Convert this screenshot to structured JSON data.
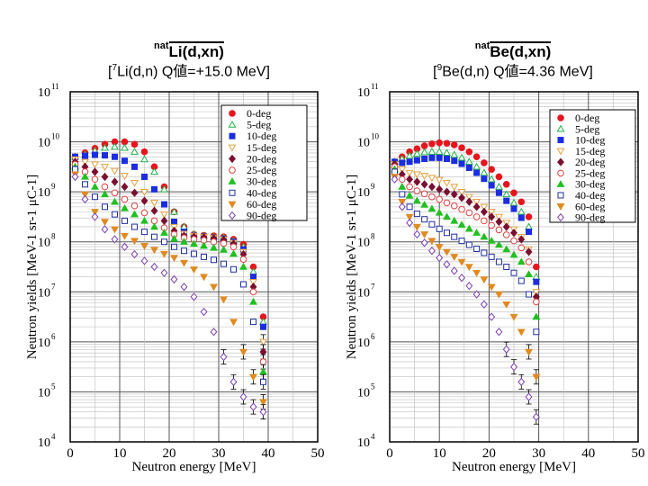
{
  "titles": [
    {
      "target": "natLi",
      "target_sup": "nat",
      "target_main": "Li(d,xn)",
      "reaction_sup": "7",
      "reaction_pre": "[",
      "reaction_main": "Li(d,n) Q値=+15.0 MeV]"
    },
    {
      "target": "natBe",
      "target_sup": "nat",
      "target_main": "Be(d,xn)",
      "reaction_sup": "9",
      "reaction_pre": "[",
      "reaction_main": "Be(d,n) Q値=4.36 MeV]"
    }
  ],
  "legend_labels": [
    "0-deg",
    "5-deg",
    "10-deg",
    "15-deg",
    "20-deg",
    "25-deg",
    "30-deg",
    "40-deg",
    "60-deg",
    "90-deg"
  ],
  "series_styles": [
    {
      "color": "#e8141c",
      "marker": "circle",
      "filled": true
    },
    {
      "color": "#22b14c",
      "marker": "triangle",
      "filled": false
    },
    {
      "color": "#1a2de0",
      "marker": "square",
      "filled": true
    },
    {
      "color": "#e8a040",
      "marker": "triangle-down",
      "filled": false
    },
    {
      "color": "#7a1030",
      "marker": "diamond",
      "filled": true
    },
    {
      "color": "#e04040",
      "marker": "circle",
      "filled": false
    },
    {
      "color": "#20c020",
      "marker": "triangle",
      "filled": true
    },
    {
      "color": "#2030a0",
      "marker": "square",
      "filled": false
    },
    {
      "color": "#e08a20",
      "marker": "triangle-down",
      "filled": true
    },
    {
      "color": "#7a40b0",
      "marker": "diamond",
      "filled": false
    }
  ],
  "chart_data": [
    {
      "type": "scatter",
      "title": "natLi(d,xn) [7Li(d,n) Q値=+15.0 MeV]",
      "xlabel": "Neutron energy [MeV]",
      "ylabel": "Neutron yields [MeV-1 sr-1 μC-1]",
      "xlim": [
        0,
        50
      ],
      "ylim_log10": [
        4,
        11
      ],
      "x_ticks": [
        "0",
        "10",
        "20",
        "30",
        "40",
        "50"
      ],
      "y_tick_exponents": [
        "4",
        "5",
        "6",
        "7",
        "8",
        "9",
        "10",
        "11"
      ],
      "series": [
        {
          "name": "0-deg",
          "x": [
            1,
            3,
            5,
            7,
            9,
            11,
            13,
            15,
            17,
            19,
            21,
            23,
            25,
            27,
            29,
            31,
            33,
            35,
            37,
            39
          ],
          "log_y": [
            9.7,
            9.78,
            9.87,
            9.95,
            10.0,
            10.0,
            9.95,
            9.8,
            9.5,
            9.1,
            8.6,
            8.3,
            8.15,
            8.13,
            8.12,
            8.1,
            8.05,
            7.95,
            7.5,
            6.5
          ]
        },
        {
          "name": "5-deg",
          "x": [
            1,
            3,
            5,
            7,
            9,
            11,
            13,
            15,
            17,
            19,
            21,
            23,
            25,
            27,
            29,
            31,
            33,
            35,
            37,
            39
          ],
          "log_y": [
            9.7,
            9.75,
            9.82,
            9.88,
            9.9,
            9.88,
            9.8,
            9.65,
            9.4,
            9.05,
            8.6,
            8.3,
            8.15,
            8.12,
            8.1,
            8.08,
            8.02,
            7.9,
            7.4,
            6.4
          ]
        },
        {
          "name": "10-deg",
          "x": [
            1,
            3,
            5,
            7,
            9,
            11,
            13,
            15,
            17,
            19,
            21,
            23,
            25,
            27,
            29,
            31,
            33,
            35,
            37,
            39
          ],
          "log_y": [
            9.7,
            9.72,
            9.74,
            9.73,
            9.7,
            9.62,
            9.5,
            9.3,
            9.05,
            8.75,
            8.4,
            8.2,
            8.12,
            8.1,
            8.08,
            8.06,
            8.0,
            7.85,
            7.3,
            6.3
          ]
        },
        {
          "name": "15-deg",
          "x": [
            1,
            3,
            5,
            7,
            9,
            11,
            13,
            15,
            17,
            19,
            21,
            23,
            25,
            27,
            29,
            31,
            33,
            35,
            37,
            39
          ],
          "log_y": [
            9.65,
            9.6,
            9.55,
            9.5,
            9.42,
            9.32,
            9.18,
            9.0,
            8.78,
            8.55,
            8.3,
            8.16,
            8.12,
            8.1,
            8.08,
            8.05,
            7.98,
            7.8,
            7.2,
            6.0
          ]
        },
        {
          "name": "20-deg",
          "x": [
            1,
            3,
            5,
            7,
            9,
            11,
            13,
            15,
            17,
            19,
            21,
            23,
            25,
            27,
            29,
            31,
            33,
            35,
            37,
            39
          ],
          "log_y": [
            9.6,
            9.5,
            9.4,
            9.3,
            9.2,
            9.1,
            8.98,
            8.82,
            8.62,
            8.42,
            8.22,
            8.12,
            8.1,
            8.09,
            8.07,
            8.04,
            7.96,
            7.75,
            7.1,
            5.8
          ]
        },
        {
          "name": "25-deg",
          "x": [
            1,
            3,
            5,
            7,
            9,
            11,
            13,
            15,
            17,
            19,
            21,
            23,
            25,
            27,
            29,
            31,
            33,
            35,
            37,
            39
          ],
          "log_y": [
            9.55,
            9.4,
            9.25,
            9.1,
            8.98,
            8.85,
            8.72,
            8.58,
            8.42,
            8.28,
            8.15,
            8.08,
            8.05,
            8.03,
            8.0,
            7.97,
            7.9,
            7.65,
            7.0,
            5.6
          ]
        },
        {
          "name": "30-deg",
          "x": [
            1,
            3,
            5,
            7,
            9,
            11,
            13,
            15,
            17,
            19,
            21,
            23,
            25,
            27,
            29,
            31,
            33,
            35,
            37,
            39
          ],
          "log_y": [
            9.5,
            9.3,
            9.1,
            8.95,
            8.8,
            8.67,
            8.55,
            8.42,
            8.3,
            8.18,
            8.06,
            8.0,
            7.96,
            7.92,
            7.88,
            7.84,
            7.76,
            7.5,
            6.8,
            5.4
          ]
        },
        {
          "name": "40-deg",
          "x": [
            1,
            3,
            5,
            7,
            9,
            11,
            13,
            15,
            17,
            19,
            21,
            23,
            25,
            27,
            29,
            31,
            33,
            35,
            37,
            39
          ],
          "log_y": [
            9.45,
            9.15,
            8.9,
            8.7,
            8.55,
            8.42,
            8.3,
            8.2,
            8.1,
            8.0,
            7.9,
            7.82,
            7.76,
            7.7,
            7.64,
            7.56,
            7.45,
            7.15,
            6.4,
            5.2
          ]
        },
        {
          "name": "60-deg",
          "x": [
            1,
            3,
            5,
            7,
            9,
            11,
            13,
            15,
            17,
            19,
            21,
            23,
            25,
            27,
            29,
            31,
            33,
            35,
            37,
            39
          ],
          "log_y": [
            9.35,
            8.95,
            8.6,
            8.4,
            8.25,
            8.12,
            8.02,
            7.92,
            7.84,
            7.76,
            7.68,
            7.58,
            7.45,
            7.3,
            7.1,
            6.85,
            6.4,
            5.8,
            5.3,
            4.8
          ]
        },
        {
          "name": "90-deg",
          "x": [
            1,
            3,
            5,
            7,
            9,
            11,
            13,
            15,
            17,
            19,
            21,
            23,
            25,
            27,
            29,
            31,
            33,
            35,
            37,
            39
          ],
          "log_y": [
            9.3,
            8.85,
            8.5,
            8.25,
            8.05,
            7.9,
            7.75,
            7.62,
            7.5,
            7.38,
            7.25,
            7.1,
            6.9,
            6.6,
            6.2,
            5.7,
            5.2,
            4.9,
            4.7,
            4.6
          ]
        }
      ]
    },
    {
      "type": "scatter",
      "title": "natBe(d,xn) [9Be(d,n) Q値=4.36 MeV]",
      "xlabel": "Neutron energy [MeV]",
      "ylabel": "Neutron yields [MeV-1 sr-1 μC-1]",
      "xlim": [
        0,
        50
      ],
      "ylim_log10": [
        4,
        11
      ],
      "x_ticks": [
        "0",
        "10",
        "20",
        "30",
        "40",
        "50"
      ],
      "y_tick_exponents": [
        "4",
        "5",
        "6",
        "7",
        "8",
        "9",
        "10",
        "11"
      ],
      "series": [
        {
          "name": "0-deg",
          "x": [
            1,
            2.5,
            4,
            5.5,
            7,
            8.5,
            10,
            11.5,
            13,
            14.5,
            16,
            17.5,
            19,
            20.5,
            22,
            23.5,
            25,
            26.5,
            28,
            29.5
          ],
          "log_y": [
            9.6,
            9.7,
            9.8,
            9.86,
            9.92,
            9.96,
            9.98,
            9.97,
            9.94,
            9.88,
            9.8,
            9.7,
            9.58,
            9.45,
            9.3,
            9.15,
            8.98,
            8.8,
            8.5,
            7.5
          ]
        },
        {
          "name": "5-deg",
          "x": [
            1,
            2.5,
            4,
            5.5,
            7,
            8.5,
            10,
            11.5,
            13,
            14.5,
            16,
            17.5,
            19,
            20.5,
            22,
            23.5,
            25,
            26.5,
            28,
            29.5
          ],
          "log_y": [
            9.6,
            9.66,
            9.72,
            9.76,
            9.79,
            9.8,
            9.8,
            9.78,
            9.74,
            9.68,
            9.6,
            9.5,
            9.38,
            9.25,
            9.1,
            8.95,
            8.78,
            8.6,
            8.3,
            7.3
          ]
        },
        {
          "name": "10-deg",
          "x": [
            1,
            2.5,
            4,
            5.5,
            7,
            8.5,
            10,
            11.5,
            13,
            14.5,
            16,
            17.5,
            19,
            20.5,
            22,
            23.5,
            25,
            26.5,
            28,
            29.5
          ],
          "log_y": [
            9.6,
            9.58,
            9.6,
            9.63,
            9.66,
            9.68,
            9.68,
            9.66,
            9.62,
            9.56,
            9.48,
            9.38,
            9.26,
            9.13,
            8.98,
            8.82,
            8.66,
            8.48,
            8.2,
            7.2
          ]
        },
        {
          "name": "15-deg",
          "x": [
            1,
            2.5,
            4,
            5.5,
            7,
            8.5,
            10,
            11.5,
            13,
            14.5,
            16,
            17.5,
            19,
            20.5,
            22,
            23.5,
            25,
            26.5,
            28,
            29.5
          ],
          "log_y": [
            9.55,
            9.45,
            9.38,
            9.35,
            9.32,
            9.28,
            9.24,
            9.18,
            9.1,
            9.0,
            8.9,
            8.8,
            8.7,
            8.6,
            8.5,
            8.38,
            8.25,
            8.1,
            7.85,
            7.0
          ]
        },
        {
          "name": "20-deg",
          "x": [
            1,
            2.5,
            4,
            5.5,
            7,
            8.5,
            10,
            11.5,
            13,
            14.5,
            16,
            17.5,
            19,
            20.5,
            22,
            23.5,
            25,
            26.5,
            28,
            29.5
          ],
          "log_y": [
            9.55,
            9.35,
            9.25,
            9.2,
            9.15,
            9.1,
            9.05,
            9.0,
            8.95,
            8.88,
            8.8,
            8.7,
            8.6,
            8.5,
            8.4,
            8.3,
            8.18,
            8.05,
            7.8,
            6.9
          ]
        },
        {
          "name": "25-deg",
          "x": [
            1,
            2.5,
            4,
            5.5,
            7,
            8.5,
            10,
            11.5,
            13,
            14.5,
            16,
            17.5,
            19,
            20.5,
            22,
            23.5,
            25,
            26.5,
            28,
            29.5
          ],
          "log_y": [
            9.5,
            9.25,
            9.1,
            9.02,
            8.96,
            8.9,
            8.85,
            8.78,
            8.72,
            8.65,
            8.58,
            8.5,
            8.42,
            8.33,
            8.24,
            8.14,
            8.02,
            7.88,
            7.6,
            6.8
          ]
        },
        {
          "name": "30-deg",
          "x": [
            1,
            2.5,
            4,
            5.5,
            7,
            8.5,
            10,
            11.5,
            13,
            14.5,
            16,
            17.5,
            19,
            20.5,
            22,
            23.5,
            25,
            26.5,
            28,
            29.5
          ],
          "log_y": [
            9.45,
            9.1,
            8.92,
            8.82,
            8.74,
            8.66,
            8.58,
            8.5,
            8.42,
            8.34,
            8.26,
            8.18,
            8.1,
            8.02,
            7.94,
            7.85,
            7.74,
            7.6,
            7.35,
            6.5
          ]
        },
        {
          "name": "40-deg",
          "x": [
            1,
            2.5,
            4,
            5.5,
            7,
            8.5,
            10,
            11.5,
            13,
            14.5,
            16,
            17.5,
            19,
            20.5,
            22,
            23.5,
            25,
            26.5,
            28,
            29.5
          ],
          "log_y": [
            9.4,
            8.95,
            8.7,
            8.56,
            8.45,
            8.35,
            8.26,
            8.18,
            8.1,
            8.02,
            7.94,
            7.86,
            7.78,
            7.7,
            7.6,
            7.5,
            7.38,
            7.22,
            6.95,
            6.2
          ]
        },
        {
          "name": "60-deg",
          "x": [
            1,
            2.5,
            4,
            5.5,
            7,
            8.5,
            10,
            11.5,
            13,
            14.5,
            16,
            17.5,
            19,
            20.5,
            22,
            23.5,
            25,
            26.5,
            28,
            29.5
          ],
          "log_y": [
            9.3,
            8.8,
            8.5,
            8.3,
            8.15,
            8.02,
            7.9,
            7.8,
            7.7,
            7.6,
            7.5,
            7.38,
            7.25,
            7.1,
            6.95,
            6.75,
            6.5,
            6.2,
            5.8,
            5.3
          ]
        },
        {
          "name": "90-deg",
          "x": [
            1,
            2.5,
            4,
            5.5,
            7,
            8.5,
            10,
            11.5,
            13,
            14.5,
            16,
            17.5,
            19,
            20.5,
            22,
            23.5,
            25,
            26.5,
            28,
            29.5
          ],
          "log_y": [
            9.25,
            8.7,
            8.38,
            8.15,
            7.98,
            7.82,
            7.68,
            7.55,
            7.42,
            7.28,
            7.12,
            6.95,
            6.75,
            6.5,
            6.2,
            5.85,
            5.5,
            5.2,
            4.9,
            4.5
          ]
        }
      ]
    }
  ]
}
